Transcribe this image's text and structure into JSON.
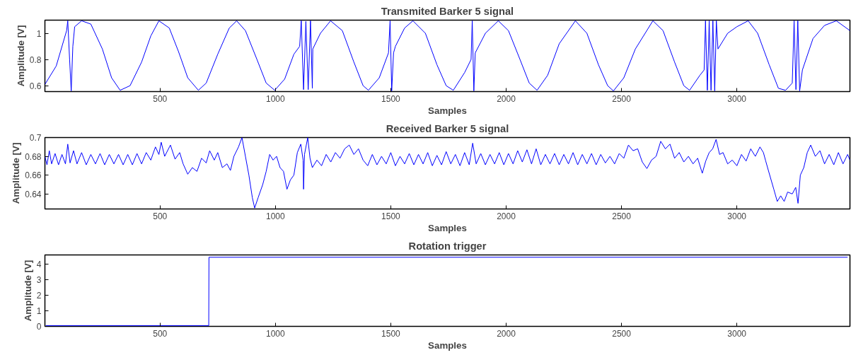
{
  "chart_data": [
    {
      "type": "line",
      "title": "Transmited Barker 5 signal",
      "xlabel": "Samples",
      "ylabel": "Amplitude [V]",
      "xlim": [
        1,
        3490
      ],
      "ylim": [
        0.555,
        1.1
      ],
      "xticks": [
        500,
        1000,
        1500,
        2000,
        2500,
        3000
      ],
      "yticks": [
        {
          "value": 0.6,
          "label": "0.6"
        },
        {
          "value": 0.8,
          "label": "0.8"
        },
        {
          "value": 1,
          "label": "1"
        }
      ],
      "series": [
        {
          "color": "#0000ff",
          "x": [
            1,
            50,
            95,
            100,
            108,
            115,
            122,
            130,
            160,
            200,
            250,
            290,
            327,
            370,
            420,
            460,
            495,
            540,
            580,
            620,
            666,
            700,
            750,
            800,
            832,
            870,
            920,
            960,
            997,
            1040,
            1080,
            1105,
            1112,
            1122,
            1132,
            1142,
            1152,
            1160,
            1162,
            1195,
            1239,
            1290,
            1340,
            1380,
            1403,
            1450,
            1490,
            1497,
            1504,
            1512,
            1520,
            1560,
            1596,
            1650,
            1700,
            1740,
            1771,
            1820,
            1848,
            1853,
            1860,
            1866,
            1910,
            1966,
            2010,
            2060,
            2100,
            2134,
            2180,
            2230,
            2300,
            2350,
            2400,
            2440,
            2465,
            2510,
            2560,
            2636,
            2680,
            2730,
            2770,
            2795,
            2840,
            2858,
            2864,
            2872,
            2880,
            2888,
            2896,
            2904,
            2911,
            2918,
            2960,
            3000,
            3049,
            3090,
            3140,
            3180,
            3211,
            3240,
            3248,
            3256,
            3264,
            3272,
            3284,
            3330,
            3380,
            3431,
            3490
          ],
          "values": [
            0.61,
            0.75,
            1.02,
            1.095,
            0.8,
            0.56,
            0.9,
            1.05,
            1.095,
            1.07,
            0.88,
            0.66,
            0.565,
            0.6,
            0.78,
            0.98,
            1.095,
            1.04,
            0.86,
            0.66,
            0.565,
            0.62,
            0.84,
            1.04,
            1.095,
            1.02,
            0.8,
            0.62,
            0.565,
            0.65,
            0.84,
            0.9,
            1.095,
            0.57,
            1.09,
            0.57,
            1.095,
            0.58,
            0.88,
            1.0,
            1.095,
            1.02,
            0.78,
            0.6,
            0.565,
            0.66,
            0.85,
            1.095,
            0.56,
            0.85,
            0.9,
            1.04,
            1.095,
            1.0,
            0.76,
            0.6,
            0.565,
            0.7,
            0.8,
            1.095,
            0.56,
            0.85,
            1.0,
            1.095,
            1.02,
            0.8,
            0.62,
            0.565,
            0.68,
            0.92,
            1.095,
            1.0,
            0.76,
            0.6,
            0.56,
            0.66,
            0.88,
            1.095,
            1.02,
            0.78,
            0.6,
            0.565,
            0.68,
            0.72,
            1.095,
            0.565,
            1.095,
            0.565,
            1.095,
            0.56,
            1.095,
            0.88,
            1.0,
            1.05,
            1.095,
            1.0,
            0.76,
            0.58,
            0.565,
            0.62,
            1.095,
            0.57,
            1.095,
            0.56,
            0.72,
            0.96,
            1.06,
            1.095,
            1.02
          ]
        }
      ]
    },
    {
      "type": "line",
      "title": "Received Barker 5 signal",
      "xlabel": "Samples",
      "ylabel": "Amplitude [V]",
      "xlim": [
        1,
        3490
      ],
      "ylim": [
        0.624,
        0.7
      ],
      "xticks": [
        500,
        1000,
        1500,
        2000,
        2500,
        3000
      ],
      "yticks": [
        0.64,
        0.66,
        0.68,
        {
          "value": 0.7,
          "label": "0.7"
        }
      ],
      "series": [
        {
          "color": "#0000ff",
          "x": [
            1,
            10,
            20,
            30,
            45,
            60,
            75,
            90,
            100,
            110,
            125,
            140,
            160,
            180,
            200,
            220,
            240,
            260,
            280,
            300,
            320,
            340,
            360,
            380,
            400,
            420,
            440,
            460,
            480,
            495,
            505,
            520,
            545,
            565,
            585,
            600,
            620,
            640,
            660,
            680,
            700,
            715,
            735,
            750,
            770,
            790,
            805,
            820,
            840,
            855,
            870,
            885,
            900,
            910,
            925,
            945,
            960,
            975,
            990,
            1005,
            1020,
            1035,
            1050,
            1065,
            1080,
            1095,
            1110,
            1120,
            1122,
            1126,
            1140,
            1150,
            1160,
            1180,
            1200,
            1220,
            1240,
            1260,
            1280,
            1300,
            1320,
            1340,
            1360,
            1380,
            1400,
            1420,
            1440,
            1460,
            1480,
            1500,
            1520,
            1540,
            1560,
            1580,
            1600,
            1620,
            1640,
            1660,
            1680,
            1700,
            1720,
            1740,
            1760,
            1780,
            1800,
            1820,
            1840,
            1855,
            1870,
            1890,
            1910,
            1930,
            1950,
            1970,
            1990,
            2010,
            2030,
            2050,
            2070,
            2090,
            2110,
            2130,
            2150,
            2170,
            2190,
            2210,
            2230,
            2250,
            2270,
            2290,
            2310,
            2330,
            2350,
            2370,
            2390,
            2410,
            2430,
            2450,
            2470,
            2490,
            2510,
            2530,
            2550,
            2570,
            2590,
            2610,
            2630,
            2650,
            2670,
            2690,
            2710,
            2730,
            2750,
            2770,
            2790,
            2810,
            2830,
            2850,
            2865,
            2880,
            2895,
            2910,
            2925,
            2940,
            2960,
            2980,
            3000,
            3020,
            3040,
            3060,
            3080,
            3100,
            3115,
            3125,
            3140,
            3160,
            3175,
            3190,
            3205,
            3220,
            3240,
            3255,
            3265,
            3275,
            3290,
            3305,
            3320,
            3340,
            3360,
            3380,
            3400,
            3420,
            3440,
            3460,
            3480,
            3490
          ],
          "values": [
            0.68,
            0.671,
            0.686,
            0.672,
            0.683,
            0.671,
            0.682,
            0.672,
            0.693,
            0.673,
            0.686,
            0.672,
            0.684,
            0.671,
            0.682,
            0.672,
            0.683,
            0.671,
            0.682,
            0.672,
            0.682,
            0.671,
            0.682,
            0.671,
            0.683,
            0.672,
            0.684,
            0.676,
            0.69,
            0.682,
            0.695,
            0.68,
            0.692,
            0.677,
            0.684,
            0.672,
            0.661,
            0.668,
            0.664,
            0.678,
            0.673,
            0.686,
            0.676,
            0.684,
            0.668,
            0.672,
            0.665,
            0.68,
            0.69,
            0.7,
            0.68,
            0.66,
            0.636,
            0.625,
            0.636,
            0.65,
            0.664,
            0.682,
            0.676,
            0.68,
            0.668,
            0.664,
            0.645,
            0.655,
            0.66,
            0.684,
            0.693,
            0.676,
            0.645,
            0.682,
            0.7,
            0.678,
            0.668,
            0.676,
            0.67,
            0.682,
            0.674,
            0.684,
            0.678,
            0.688,
            0.692,
            0.682,
            0.688,
            0.676,
            0.67,
            0.682,
            0.671,
            0.68,
            0.672,
            0.684,
            0.67,
            0.68,
            0.672,
            0.683,
            0.671,
            0.682,
            0.672,
            0.684,
            0.67,
            0.681,
            0.671,
            0.685,
            0.672,
            0.682,
            0.67,
            0.684,
            0.671,
            0.694,
            0.672,
            0.683,
            0.671,
            0.682,
            0.672,
            0.684,
            0.671,
            0.683,
            0.672,
            0.686,
            0.674,
            0.687,
            0.672,
            0.688,
            0.671,
            0.682,
            0.672,
            0.683,
            0.671,
            0.682,
            0.672,
            0.684,
            0.671,
            0.682,
            0.672,
            0.683,
            0.671,
            0.682,
            0.673,
            0.68,
            0.672,
            0.683,
            0.678,
            0.692,
            0.686,
            0.688,
            0.674,
            0.667,
            0.676,
            0.68,
            0.696,
            0.688,
            0.693,
            0.678,
            0.684,
            0.674,
            0.68,
            0.672,
            0.678,
            0.662,
            0.675,
            0.684,
            0.688,
            0.698,
            0.682,
            0.684,
            0.672,
            0.676,
            0.67,
            0.682,
            0.675,
            0.688,
            0.68,
            0.69,
            0.684,
            0.675,
            0.662,
            0.645,
            0.632,
            0.638,
            0.632,
            0.642,
            0.64,
            0.647,
            0.63,
            0.66,
            0.668,
            0.684,
            0.692,
            0.68,
            0.686,
            0.672,
            0.682,
            0.671,
            0.684,
            0.672,
            0.682,
            0.676
          ]
        }
      ]
    },
    {
      "type": "line",
      "title": "Rotation trigger",
      "xlabel": "Samples",
      "ylabel": "Amplitude [V]",
      "xlim": [
        1,
        3490
      ],
      "ylim": [
        0,
        4.6
      ],
      "xticks": [
        500,
        1000,
        1500,
        2000,
        2500,
        3000
      ],
      "yticks": [
        0,
        1,
        2,
        3,
        4
      ],
      "series": [
        {
          "color": "#0000ff",
          "x": [
            5,
            711,
            712,
            3480
          ],
          "values": [
            0.05,
            0.05,
            4.45,
            4.45
          ]
        }
      ]
    }
  ]
}
